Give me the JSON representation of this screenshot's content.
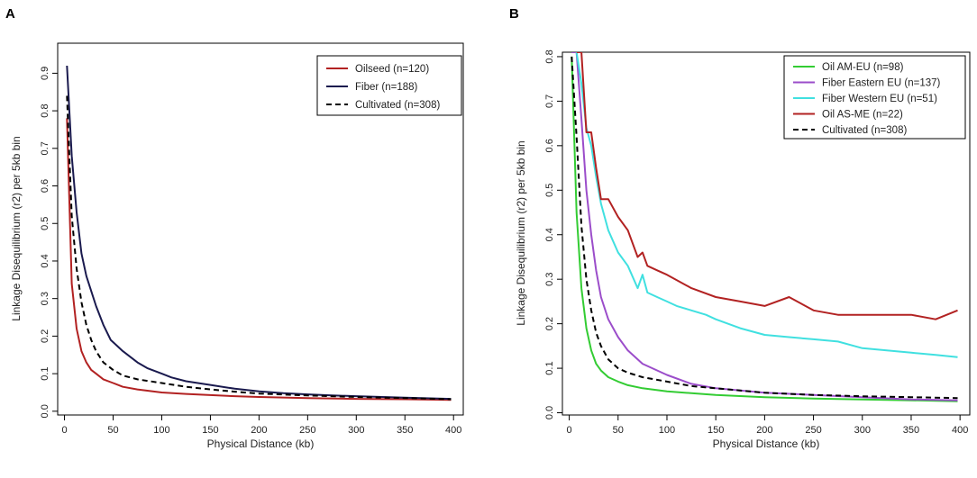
{
  "chart_data": [
    {
      "type": "line",
      "panel_label": "A",
      "xlabel": "Physical Distance (kb)",
      "ylabel": "Linkage Disequilibrium (r2) per 5kb bin",
      "xlim": [
        -7,
        410
      ],
      "ylim": [
        -0.01,
        0.98
      ],
      "xticks": [
        0,
        50,
        100,
        150,
        200,
        250,
        300,
        350,
        400
      ],
      "yticks": [
        0.0,
        0.1,
        0.2,
        0.3,
        0.4,
        0.5,
        0.6,
        0.7,
        0.8,
        0.9
      ],
      "ytick_labels": [
        "0.0",
        "0.1",
        "0.2",
        "0.3",
        "0.4",
        "0.5",
        "0.6",
        "0.7",
        "0.8",
        "0.9"
      ],
      "legend_position": "top-right",
      "series": [
        {
          "name": "Oilseed (n=120)",
          "color": "#b22222",
          "dash": "solid",
          "x": [
            2.5,
            7.5,
            12.5,
            17.5,
            22.5,
            27.5,
            32.5,
            40,
            50,
            60,
            75,
            100,
            125,
            150,
            175,
            200,
            250,
            300,
            350,
            397.5
          ],
          "y": [
            0.78,
            0.34,
            0.22,
            0.16,
            0.13,
            0.11,
            0.1,
            0.085,
            0.075,
            0.065,
            0.058,
            0.05,
            0.046,
            0.043,
            0.04,
            0.038,
            0.035,
            0.033,
            0.032,
            0.03
          ]
        },
        {
          "name": "Fiber (n=188)",
          "color": "#1a1a4e",
          "dash": "solid",
          "x": [
            2.5,
            7.5,
            12.5,
            17.5,
            22.5,
            27.5,
            32.5,
            40,
            47.5,
            60,
            75,
            85,
            100,
            110,
            125,
            150,
            175,
            200,
            225,
            250,
            275,
            300,
            350,
            397.5
          ],
          "y": [
            0.92,
            0.68,
            0.53,
            0.42,
            0.36,
            0.32,
            0.28,
            0.23,
            0.19,
            0.16,
            0.13,
            0.115,
            0.1,
            0.09,
            0.08,
            0.07,
            0.06,
            0.053,
            0.048,
            0.045,
            0.042,
            0.04,
            0.036,
            0.033
          ]
        },
        {
          "name": "Cultivated (n=308)",
          "color": "#000000",
          "dash": "dashed",
          "x": [
            2.5,
            7.5,
            12.5,
            17.5,
            22.5,
            27.5,
            32.5,
            40,
            50,
            60,
            75,
            100,
            125,
            150,
            175,
            200,
            250,
            300,
            350,
            397.5
          ],
          "y": [
            0.84,
            0.52,
            0.38,
            0.29,
            0.23,
            0.19,
            0.16,
            0.13,
            0.11,
            0.095,
            0.085,
            0.075,
            0.065,
            0.058,
            0.052,
            0.047,
            0.042,
            0.038,
            0.035,
            0.032
          ]
        }
      ]
    },
    {
      "type": "line",
      "panel_label": "B",
      "xlabel": "Physical Distance (kb)",
      "ylabel": "Linkage Disequilibrium (r2) per 5kb bin",
      "xlim": [
        -7,
        410
      ],
      "ylim": [
        -0.005,
        0.81
      ],
      "xticks": [
        0,
        50,
        100,
        150,
        200,
        250,
        300,
        350,
        400
      ],
      "yticks": [
        0.0,
        0.1,
        0.2,
        0.3,
        0.4,
        0.5,
        0.6,
        0.7,
        0.8
      ],
      "ytick_labels": [
        "0.0",
        "0.1",
        "0.2",
        "0.3",
        "0.4",
        "0.5",
        "0.6",
        "0.7",
        "0.8"
      ],
      "legend_position": "top-right",
      "series": [
        {
          "name": "Oil AM-EU (n=98)",
          "color": "#33cc33",
          "dash": "solid",
          "x": [
            2.5,
            7.5,
            12.5,
            17.5,
            22.5,
            27.5,
            32.5,
            40,
            50,
            60,
            75,
            100,
            125,
            150,
            200,
            250,
            300,
            350,
            397.5
          ],
          "y": [
            0.8,
            0.45,
            0.28,
            0.19,
            0.14,
            0.11,
            0.095,
            0.08,
            0.07,
            0.062,
            0.055,
            0.048,
            0.044,
            0.04,
            0.035,
            0.032,
            0.03,
            0.028,
            0.026
          ]
        },
        {
          "name": "Fiber Eastern EU (n=137)",
          "color": "#9b4dca",
          "dash": "solid",
          "x": [
            2.5,
            7.5,
            12.5,
            17.5,
            22.5,
            27.5,
            32.5,
            40,
            50,
            60,
            75,
            100,
            125,
            150,
            200,
            250,
            300,
            350,
            397.5
          ],
          "y": [
            0.81,
            0.81,
            0.66,
            0.5,
            0.4,
            0.32,
            0.26,
            0.21,
            0.17,
            0.14,
            0.11,
            0.085,
            0.065,
            0.055,
            0.045,
            0.04,
            0.035,
            0.03,
            0.028
          ]
        },
        {
          "name": "Fiber Western EU (n=51)",
          "color": "#40e0e0",
          "dash": "solid",
          "x": [
            7.5,
            12.5,
            17.5,
            22.5,
            27.5,
            32.5,
            40,
            50,
            60,
            70,
            75,
            80,
            90,
            100,
            110,
            125,
            140,
            150,
            175,
            200,
            225,
            250,
            275,
            300,
            325,
            350,
            375,
            397.5
          ],
          "y": [
            0.81,
            0.74,
            0.64,
            0.6,
            0.53,
            0.47,
            0.41,
            0.36,
            0.33,
            0.28,
            0.31,
            0.27,
            0.26,
            0.25,
            0.24,
            0.23,
            0.22,
            0.21,
            0.19,
            0.175,
            0.17,
            0.165,
            0.16,
            0.145,
            0.14,
            0.135,
            0.13,
            0.125
          ]
        },
        {
          "name": "Oil AS-ME (n=22)",
          "color": "#b22222",
          "dash": "solid",
          "x": [
            7.5,
            12.5,
            17.5,
            22.5,
            27.5,
            32.5,
            40,
            50,
            60,
            70,
            75,
            80,
            90,
            100,
            125,
            150,
            175,
            200,
            225,
            250,
            275,
            300,
            325,
            350,
            375,
            397.5
          ],
          "y": [
            0.81,
            0.81,
            0.63,
            0.63,
            0.55,
            0.48,
            0.48,
            0.44,
            0.41,
            0.35,
            0.36,
            0.33,
            0.32,
            0.31,
            0.28,
            0.26,
            0.25,
            0.24,
            0.26,
            0.23,
            0.22,
            0.22,
            0.22,
            0.22,
            0.21,
            0.23
          ]
        },
        {
          "name": "Cultivated (n=308)",
          "color": "#000000",
          "dash": "dashed",
          "x": [
            2.5,
            7.5,
            12.5,
            17.5,
            22.5,
            27.5,
            32.5,
            40,
            50,
            60,
            75,
            100,
            125,
            150,
            200,
            250,
            300,
            350,
            397.5
          ],
          "y": [
            0.8,
            0.62,
            0.42,
            0.3,
            0.23,
            0.18,
            0.15,
            0.12,
            0.1,
            0.09,
            0.08,
            0.07,
            0.06,
            0.055,
            0.045,
            0.04,
            0.037,
            0.035,
            0.033
          ]
        }
      ]
    }
  ]
}
